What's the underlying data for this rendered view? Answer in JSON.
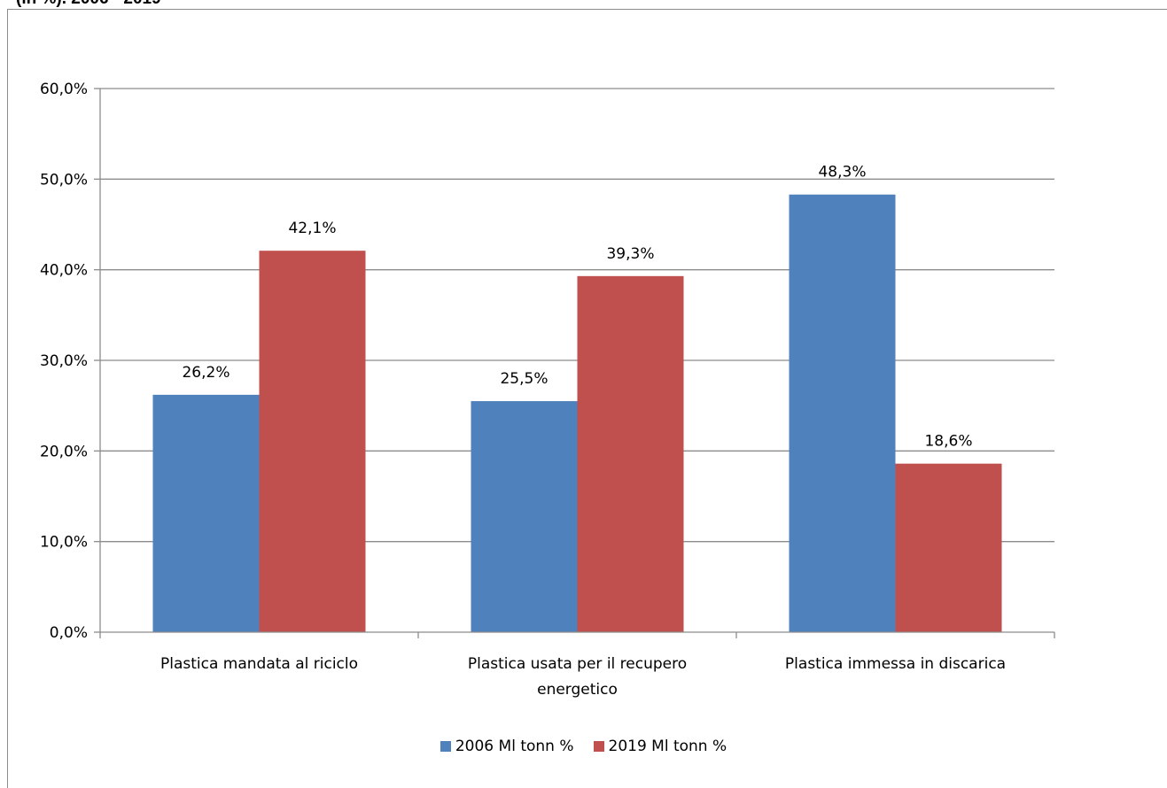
{
  "caption": "(in %). 2006 - 2019",
  "chart_data": {
    "type": "bar",
    "title": "",
    "xlabel": "",
    "ylabel": "",
    "ylim": [
      0,
      60
    ],
    "yticks": [
      "0,0%",
      "10,0%",
      "20,0%",
      "30,0%",
      "40,0%",
      "50,0%",
      "60,0%"
    ],
    "categories": [
      [
        "Plastica mandata al riciclo"
      ],
      [
        "Plastica usata per il recupero",
        "energetico"
      ],
      [
        "Plastica immessa in discarica"
      ]
    ],
    "series": [
      {
        "name": "2006 Ml tonn %",
        "color": "#4f81bd",
        "values": [
          26.2,
          25.5,
          48.3
        ],
        "labels": [
          "26,2%",
          "25,5%",
          "48,3%"
        ]
      },
      {
        "name": "2019 Ml tonn %",
        "color": "#c0504d",
        "values": [
          42.1,
          39.3,
          18.6
        ],
        "labels": [
          "42,1%",
          "39,3%",
          "18,6%"
        ]
      }
    ],
    "grid": true,
    "legend_position": "bottom"
  }
}
